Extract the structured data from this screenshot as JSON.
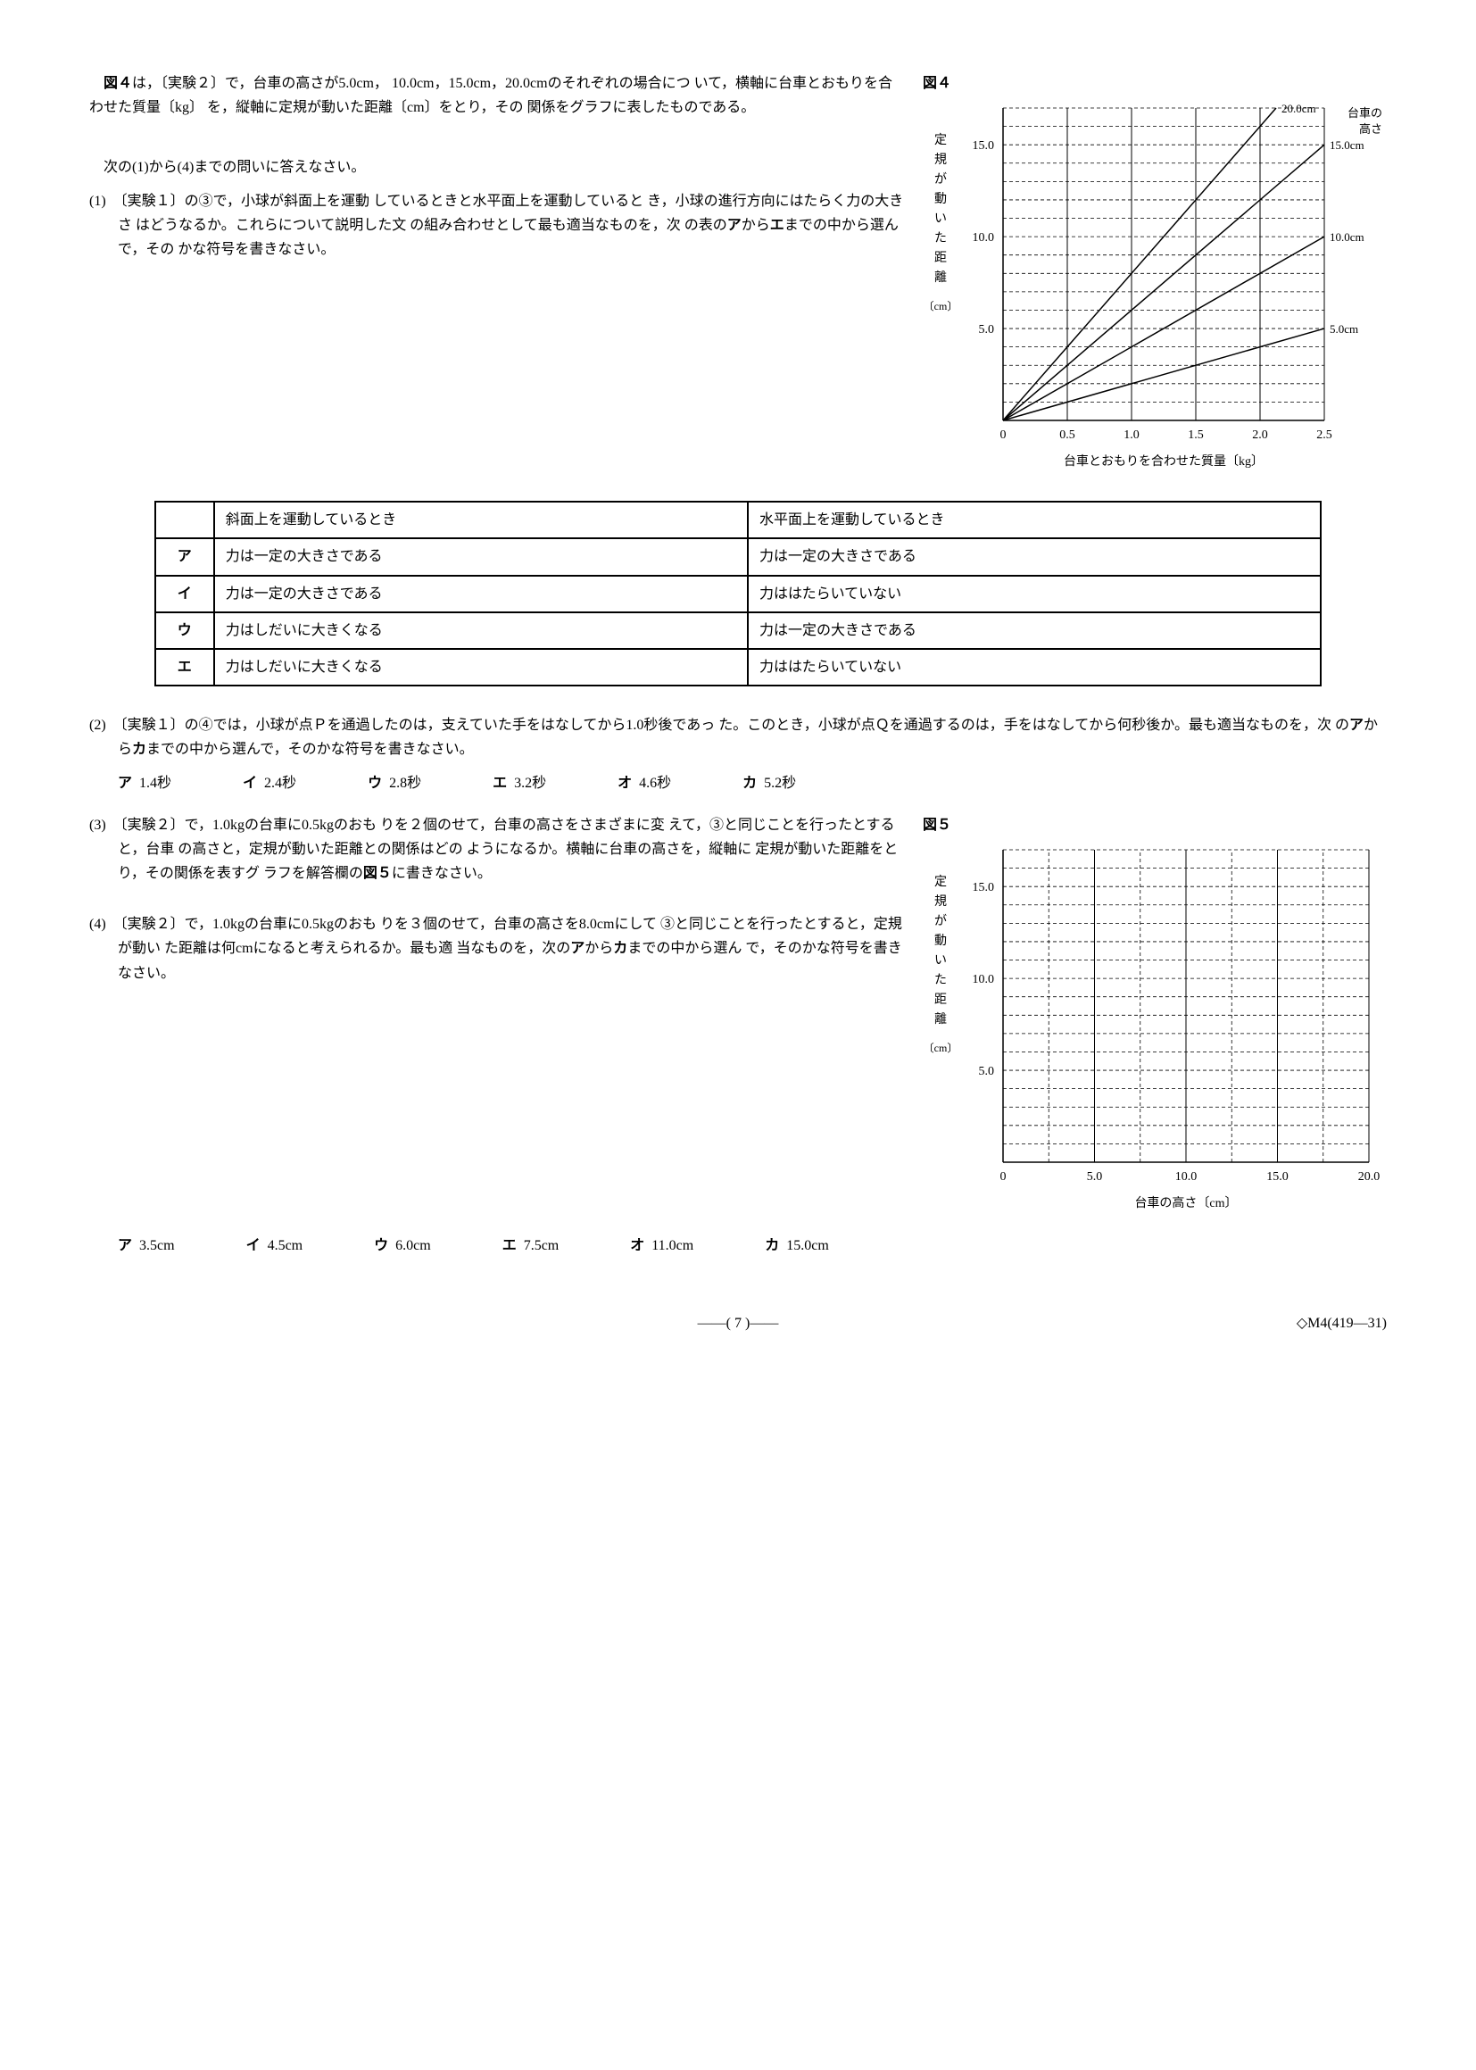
{
  "intro": {
    "line1_a": "図４",
    "line1_b": "は，〔実験２〕で，台車の高さが5.0cm，",
    "line2": "10.0cm，15.0cm，20.0cmのそれぞれの場合につ",
    "line3": "いて，横軸に台車とおもりを合わせた質量〔kg〕",
    "line4": "を，縦軸に定規が動いた距離〔cm〕をとり，その",
    "line5": "関係をグラフに表したものである。",
    "q_prompt": "次の(1)から(4)までの問いに答えなさい。"
  },
  "q1": {
    "head": "(1)　〔実験１〕の③で，小球が斜面上を運動",
    "l2": "しているときと水平面上を運動していると",
    "l3": "き，小球の進行方向にはたらく力の大きさ",
    "l4": "はどうなるか。これらについて説明した文",
    "l5a": "の組み合わせとして最も適当なものを，次",
    "l5b": "の表の",
    "l5c": "ア",
    "l5d": "から",
    "l5e": "エ",
    "l5f": "までの中から選んで，その",
    "l6": "かな符号を書きなさい。"
  },
  "table1": {
    "h1": "斜面上を運動しているとき",
    "h2": "水平面上を運動しているとき",
    "rows": [
      {
        "sym": "ア",
        "c1": "力は一定の大きさである",
        "c2": "力は一定の大きさである"
      },
      {
        "sym": "イ",
        "c1": "力は一定の大きさである",
        "c2": "力ははたらいていない"
      },
      {
        "sym": "ウ",
        "c1": "力はしだいに大きくなる",
        "c2": "力は一定の大きさである"
      },
      {
        "sym": "エ",
        "c1": "力はしだいに大きくなる",
        "c2": "力ははたらいていない"
      }
    ]
  },
  "q2": {
    "l1": "(2)　〔実験１〕の④では，小球が点Ｐを通過したのは，支えていた手をはなしてから1.0秒後であっ",
    "l2": "た。このとき，小球が点Ｑを通過するのは，手をはなしてから何秒後か。最も適当なものを，次",
    "l3a": "の",
    "l3b": "ア",
    "l3c": "から",
    "l3d": "カ",
    "l3e": "までの中から選んで，そのかな符号を書きなさい。",
    "choices": [
      {
        "sym": "ア",
        "val": "1.4秒"
      },
      {
        "sym": "イ",
        "val": "2.4秒"
      },
      {
        "sym": "ウ",
        "val": "2.8秒"
      },
      {
        "sym": "エ",
        "val": "3.2秒"
      },
      {
        "sym": "オ",
        "val": "4.6秒"
      },
      {
        "sym": "カ",
        "val": "5.2秒"
      }
    ]
  },
  "q3": {
    "l1": "(3)　〔実験２〕で，1.0kgの台車に0.5kgのおも",
    "l2": "りを２個のせて，台車の高さをさまざまに変",
    "l3": "えて，③と同じことを行ったとすると，台車",
    "l4": "の高さと，定規が動いた距離との関係はどの",
    "l5": "ようになるか。横軸に台車の高さを，縦軸に",
    "l6": "定規が動いた距離をとり，その関係を表すグ",
    "l7a": "ラフを解答欄の",
    "l7b": "図５",
    "l7c": "に書きなさい。"
  },
  "q4": {
    "l1": "(4)　〔実験２〕で，1.0kgの台車に0.5kgのおも",
    "l2": "りを３個のせて，台車の高さを8.0cmにして",
    "l3": "③と同じことを行ったとすると，定規が動い",
    "l4": "た距離は何cmになると考えられるか。最も適",
    "l5a": "当なものを，次の",
    "l5b": "ア",
    "l5c": "から",
    "l5d": "カ",
    "l5e": "までの中から選ん",
    "l6": "で，そのかな符号を書きなさい。",
    "choices": [
      {
        "sym": "ア",
        "val": "3.5cm"
      },
      {
        "sym": "イ",
        "val": "4.5cm"
      },
      {
        "sym": "ウ",
        "val": "6.0cm"
      },
      {
        "sym": "エ",
        "val": "7.5cm"
      },
      {
        "sym": "オ",
        "val": "11.0cm"
      },
      {
        "sym": "カ",
        "val": "15.0cm"
      }
    ]
  },
  "chart4": {
    "label": "図４",
    "type": "line",
    "x_label": "台車とおもりを合わせた質量〔kg〕",
    "y_label": "定規が動いた距離〔cm〕",
    "y_label_chars": [
      "定",
      "規",
      "が",
      "動",
      "い",
      "た",
      "距",
      "離"
    ],
    "right_label": "台車の\n高さ",
    "xlim": [
      0,
      2.5
    ],
    "ylim": [
      0,
      17
    ],
    "x_ticks": [
      0,
      0.5,
      1.0,
      1.5,
      2.0,
      2.5
    ],
    "x_tick_labels": [
      "0",
      "0.5",
      "1.0",
      "1.5",
      "2.0",
      "2.5"
    ],
    "y_ticks": [
      5.0,
      10.0,
      15.0
    ],
    "y_tick_labels": [
      "5.0",
      "10.0",
      "15.0"
    ],
    "minor_y_step": 1,
    "series": [
      {
        "label": "20.0cm",
        "points": [
          [
            0,
            0
          ],
          [
            2.5,
            20
          ]
        ],
        "color": "#000000"
      },
      {
        "label": "15.0cm",
        "points": [
          [
            0,
            0
          ],
          [
            2.5,
            15
          ]
        ],
        "color": "#000000"
      },
      {
        "label": "10.0cm",
        "points": [
          [
            0,
            0
          ],
          [
            2.5,
            10
          ]
        ],
        "color": "#000000"
      },
      {
        "label": "5.0cm",
        "points": [
          [
            0,
            0
          ],
          [
            2.5,
            5
          ]
        ],
        "color": "#000000"
      }
    ],
    "axis_color": "#000000",
    "grid_color": "#000000",
    "background": "#ffffff",
    "line_width": 1.5,
    "dash": "4,3",
    "fontsize": 14
  },
  "chart5": {
    "label": "図５",
    "type": "grid",
    "x_label": "台車の高さ〔cm〕",
    "y_label": "定規が動いた距離〔cm〕",
    "y_label_chars": [
      "定",
      "規",
      "が",
      "動",
      "い",
      "た",
      "距",
      "離"
    ],
    "xlim": [
      0,
      20
    ],
    "ylim": [
      0,
      17
    ],
    "x_ticks": [
      0,
      5.0,
      10.0,
      15.0,
      20.0
    ],
    "x_tick_labels": [
      "0",
      "5.0",
      "10.0",
      "15.0",
      "20.0"
    ],
    "y_ticks": [
      5.0,
      10.0,
      15.0
    ],
    "y_tick_labels": [
      "5.0",
      "10.0",
      "15.0"
    ],
    "minor_y_step": 1,
    "minor_x_step": 2.5,
    "axis_color": "#000000",
    "grid_color": "#000000",
    "background": "#ffffff",
    "dash": "4,3",
    "fontsize": 14
  },
  "footer": {
    "page": "——( 7 )——",
    "code": "◇M4(419—31)"
  }
}
